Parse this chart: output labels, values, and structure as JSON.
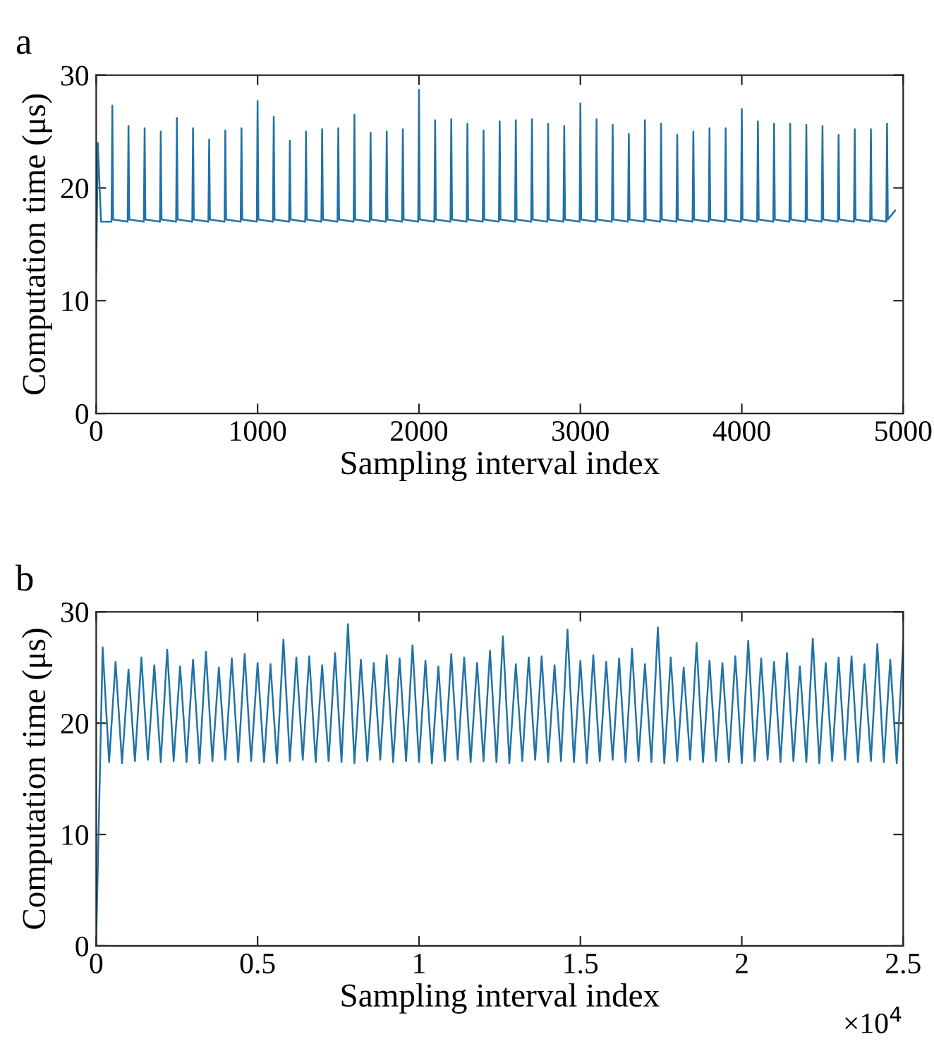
{
  "chart_data": [
    {
      "type": "line",
      "title": "a",
      "xlabel": "Sampling interval index",
      "ylabel": "Computation time (μs)",
      "xlim": [
        0,
        5000
      ],
      "xticks": [
        0,
        1000,
        2000,
        3000,
        4000,
        5000
      ],
      "ylim": [
        0,
        30
      ],
      "yticks": [
        0,
        10,
        20,
        30
      ],
      "grid": false,
      "legend": false,
      "series": [
        {
          "color": "#2172a7",
          "x": [
            0,
            10,
            30,
            95,
            100,
            105,
            195,
            200,
            205,
            295,
            300,
            305,
            395,
            400,
            405,
            495,
            500,
            505,
            595,
            600,
            605,
            695,
            700,
            705,
            795,
            800,
            805,
            895,
            900,
            905,
            995,
            1000,
            1005,
            1095,
            1100,
            1105,
            1195,
            1200,
            1205,
            1295,
            1300,
            1305,
            1395,
            1400,
            1405,
            1495,
            1500,
            1505,
            1595,
            1600,
            1605,
            1695,
            1700,
            1705,
            1795,
            1800,
            1805,
            1895,
            1900,
            1905,
            1995,
            2000,
            2005,
            2095,
            2100,
            2105,
            2195,
            2200,
            2205,
            2295,
            2300,
            2305,
            2395,
            2400,
            2405,
            2495,
            2500,
            2505,
            2595,
            2600,
            2605,
            2695,
            2700,
            2705,
            2795,
            2800,
            2805,
            2895,
            2900,
            2905,
            2995,
            3000,
            3005,
            3095,
            3100,
            3105,
            3195,
            3200,
            3205,
            3295,
            3300,
            3305,
            3395,
            3400,
            3405,
            3495,
            3500,
            3505,
            3595,
            3600,
            3605,
            3695,
            3700,
            3705,
            3795,
            3800,
            3805,
            3895,
            3900,
            3905,
            3995,
            4000,
            4005,
            4095,
            4100,
            4105,
            4195,
            4200,
            4205,
            4295,
            4300,
            4305,
            4395,
            4400,
            4405,
            4495,
            4500,
            4505,
            4595,
            4600,
            4605,
            4695,
            4700,
            4705,
            4795,
            4800,
            4805,
            4895,
            4900,
            4905,
            4950
          ],
          "values": [
            12.5,
            24,
            17,
            17.0,
            27.3,
            17.2,
            17.0,
            25.5,
            17.2,
            17.0,
            25.3,
            17.2,
            17.0,
            25.0,
            17.2,
            17.0,
            26.2,
            17.2,
            17.0,
            25.3,
            17.2,
            17.0,
            24.3,
            17.2,
            17.0,
            25.1,
            17.2,
            17.0,
            25.3,
            17.2,
            17.0,
            27.7,
            17.2,
            17.0,
            26.3,
            17.2,
            17.0,
            24.2,
            17.2,
            17.0,
            25.0,
            17.2,
            17.0,
            25.2,
            17.2,
            17.0,
            25.3,
            17.2,
            17.0,
            26.5,
            17.2,
            17.0,
            24.9,
            17.2,
            17.0,
            25.0,
            17.2,
            17.0,
            25.2,
            17.2,
            17.0,
            28.7,
            17.2,
            17.0,
            26.0,
            17.2,
            17.0,
            26.1,
            17.2,
            17.0,
            25.7,
            17.2,
            17.0,
            25.1,
            17.2,
            17.0,
            25.9,
            17.2,
            17.0,
            26.0,
            17.2,
            17.0,
            26.1,
            17.2,
            17.0,
            25.7,
            17.2,
            17.0,
            25.5,
            17.2,
            17.0,
            27.5,
            17.2,
            17.0,
            26.1,
            17.2,
            17.0,
            25.6,
            17.2,
            17.0,
            24.8,
            17.2,
            17.0,
            26.0,
            17.2,
            17.0,
            25.7,
            17.2,
            17.0,
            24.7,
            17.2,
            17.0,
            25.0,
            17.2,
            17.0,
            25.3,
            17.2,
            17.0,
            25.3,
            17.2,
            17.0,
            27.0,
            17.2,
            17.0,
            25.9,
            17.2,
            17.0,
            25.7,
            17.2,
            17.0,
            25.7,
            17.2,
            17.0,
            25.6,
            17.2,
            17.0,
            25.5,
            17.2,
            17.0,
            24.7,
            17.2,
            17.0,
            25.2,
            17.2,
            17.0,
            25.2,
            17.2,
            17.0,
            25.7,
            17.2,
            18.0
          ]
        }
      ]
    },
    {
      "type": "line",
      "title": "b",
      "xlabel": "Sampling interval index",
      "ylabel": "Computation time (μs)",
      "xlim": [
        0,
        2.5
      ],
      "xticks": [
        0,
        0.5,
        1,
        1.5,
        2,
        2.5
      ],
      "ylim": [
        0,
        30
      ],
      "yticks": [
        0,
        10,
        20,
        30
      ],
      "grid": false,
      "legend": false,
      "annotations": [
        "×10$^{4}$"
      ],
      "series": [
        {
          "color": "#2172a7",
          "x": [
            0,
            0.02,
            0.04,
            0.06,
            0.08,
            0.1,
            0.12,
            0.14,
            0.16,
            0.18,
            0.2,
            0.22,
            0.24,
            0.26,
            0.28,
            0.3,
            0.32,
            0.34,
            0.36,
            0.38,
            0.4,
            0.42,
            0.44,
            0.46,
            0.48,
            0.5,
            0.52,
            0.54,
            0.56,
            0.58,
            0.6,
            0.62,
            0.64,
            0.66,
            0.68,
            0.7,
            0.72,
            0.74,
            0.76,
            0.78,
            0.8,
            0.82,
            0.84,
            0.86,
            0.88,
            0.9,
            0.92,
            0.94,
            0.96,
            0.98,
            1.0,
            1.02,
            1.04,
            1.06,
            1.08,
            1.1,
            1.12,
            1.14,
            1.16,
            1.18,
            1.2,
            1.22,
            1.24,
            1.26,
            1.28,
            1.3,
            1.32,
            1.34,
            1.36,
            1.38,
            1.4,
            1.42,
            1.44,
            1.46,
            1.48,
            1.5,
            1.52,
            1.54,
            1.56,
            1.58,
            1.6,
            1.62,
            1.64,
            1.66,
            1.68,
            1.7,
            1.72,
            1.74,
            1.76,
            1.78,
            1.8,
            1.82,
            1.84,
            1.86,
            1.88,
            1.9,
            1.92,
            1.94,
            1.96,
            1.98,
            2.0,
            2.02,
            2.04,
            2.06,
            2.08,
            2.1,
            2.12,
            2.14,
            2.16,
            2.18,
            2.2,
            2.22,
            2.24,
            2.26,
            2.28,
            2.3,
            2.32,
            2.34,
            2.36,
            2.38,
            2.4,
            2.42,
            2.44,
            2.46,
            2.48,
            2.5
          ],
          "values": [
            0.5,
            26.8,
            16.5,
            25.5,
            16.4,
            24.8,
            16.6,
            25.9,
            16.7,
            25.2,
            16.5,
            26.6,
            16.6,
            25.1,
            16.5,
            25.7,
            16.4,
            26.4,
            16.6,
            25.0,
            16.7,
            25.8,
            16.5,
            26.2,
            16.6,
            25.4,
            16.5,
            25.3,
            16.4,
            27.5,
            16.6,
            25.9,
            16.7,
            26.0,
            16.5,
            25.2,
            16.6,
            26.3,
            16.5,
            28.9,
            16.4,
            25.7,
            16.6,
            25.4,
            16.7,
            26.1,
            16.5,
            25.8,
            16.6,
            27.0,
            16.5,
            25.6,
            16.4,
            25.1,
            16.6,
            26.2,
            16.7,
            25.9,
            16.5,
            25.4,
            16.6,
            26.5,
            16.5,
            27.8,
            16.4,
            25.3,
            16.6,
            25.9,
            16.7,
            26.0,
            16.5,
            25.2,
            16.6,
            28.4,
            16.5,
            25.6,
            16.4,
            26.1,
            16.6,
            25.5,
            16.7,
            25.8,
            16.5,
            26.7,
            16.6,
            25.3,
            16.5,
            28.6,
            16.4,
            25.9,
            16.6,
            25.0,
            16.7,
            27.2,
            16.5,
            25.6,
            16.6,
            25.4,
            16.5,
            26.0,
            16.4,
            27.4,
            16.6,
            25.8,
            16.7,
            25.5,
            16.5,
            26.3,
            16.6,
            25.1,
            16.5,
            27.6,
            16.4,
            25.4,
            16.6,
            25.9,
            16.7,
            26.0,
            16.5,
            25.3,
            16.6,
            27.1,
            16.5,
            25.7,
            16.4,
            27.2
          ]
        }
      ]
    }
  ]
}
